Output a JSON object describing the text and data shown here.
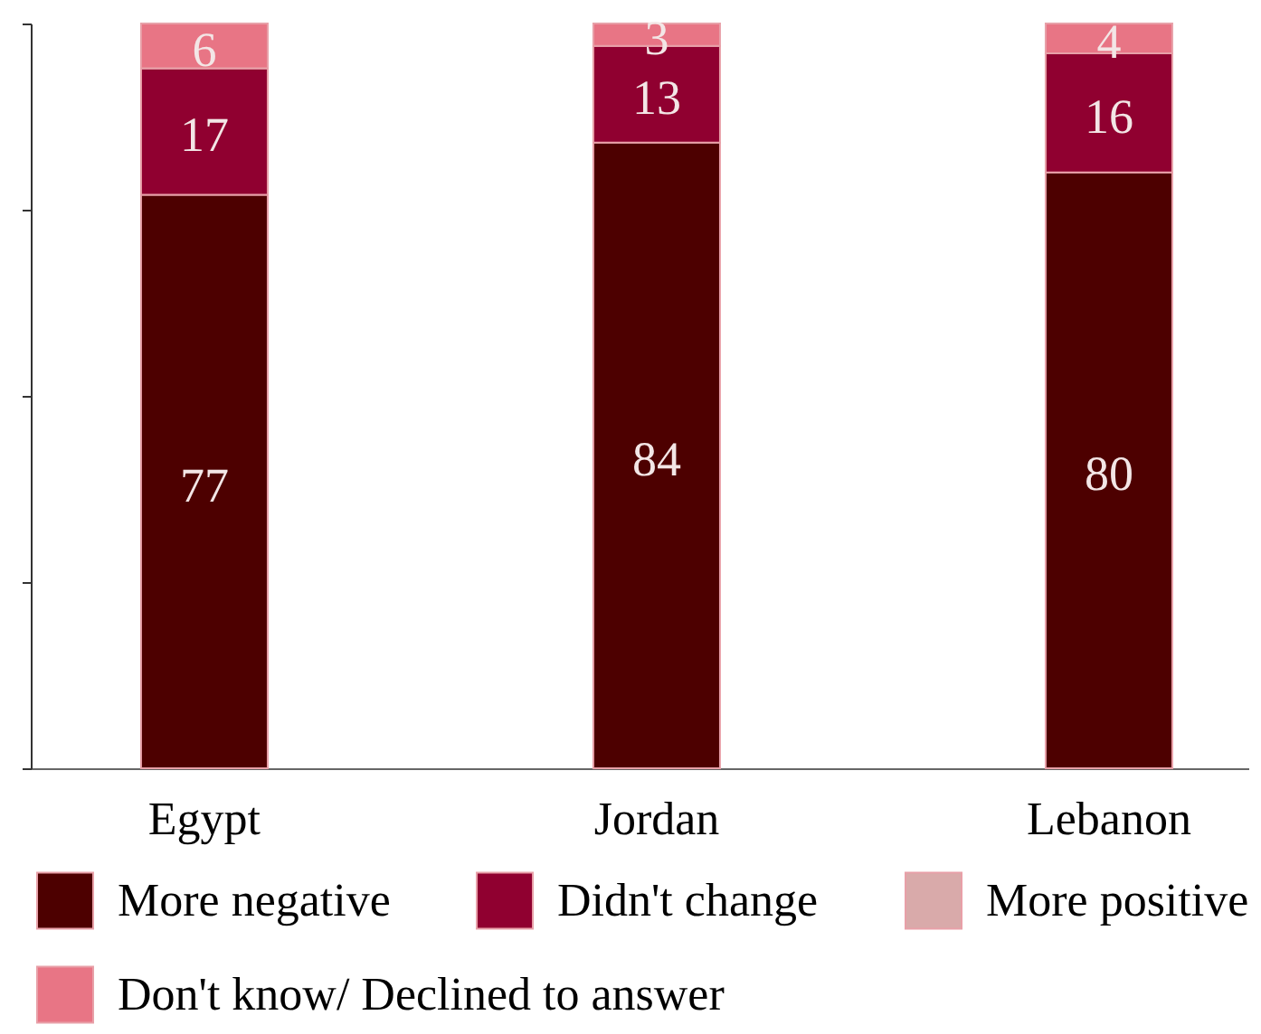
{
  "chart_data": {
    "type": "bar",
    "stacked": true,
    "categories": [
      "Egypt",
      "Jordan",
      "Lebanon"
    ],
    "series": [
      {
        "name": "More negative",
        "color": "#4d0000",
        "values": [
          77,
          84,
          80
        ],
        "value_labels": [
          "77",
          "84",
          "80"
        ]
      },
      {
        "name": "Didn't change",
        "color": "#900030",
        "values": [
          17,
          13,
          16
        ],
        "value_labels": [
          "17",
          "13",
          "16"
        ]
      },
      {
        "name": "More positive",
        "color": "#d9aaaa",
        "values": [
          0,
          0,
          0
        ]
      },
      {
        "name": "Don't know/ Declined to answer",
        "color": "#e87585",
        "values": [
          6,
          3,
          4
        ],
        "value_labels": [
          "6",
          "3",
          "4"
        ]
      }
    ],
    "ylim": [
      0,
      100
    ],
    "yticks": [
      {
        "value": 0,
        "label": null
      },
      {
        "value": 25,
        "label": null
      },
      {
        "value": 50,
        "label": null
      },
      {
        "value": 75,
        "label": null
      },
      {
        "value": 100,
        "label": null
      }
    ],
    "tick_labels": "x",
    "legend": "bottom"
  }
}
